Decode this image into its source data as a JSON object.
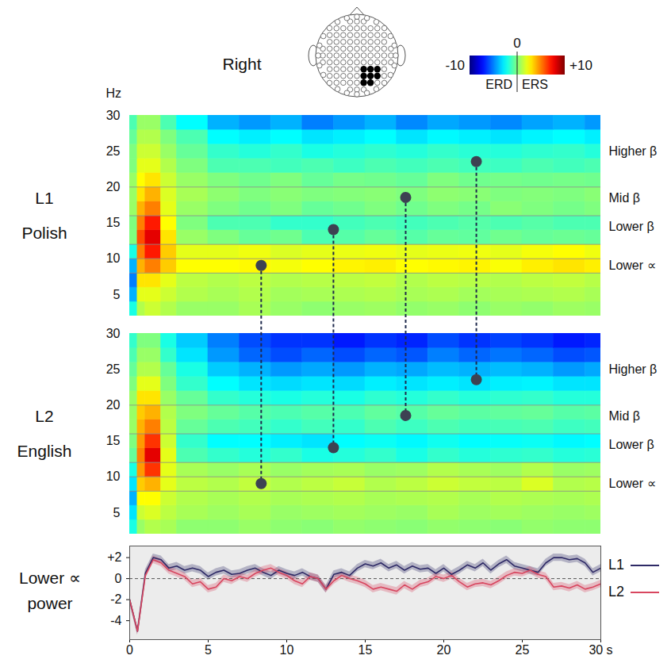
{
  "title": "Right",
  "colorbar": {
    "range": [
      -10,
      10
    ],
    "ticks": [
      -10,
      0,
      {
        "value": 10,
        "label": "+10"
      }
    ],
    "labels": [
      "ERD",
      "ERS"
    ]
  },
  "chart_data": [
    {
      "type": "heatmap",
      "title": "L1 Polish",
      "ylabel": "Hz",
      "xlim": [
        0,
        30
      ],
      "ylim": [
        2,
        30
      ],
      "yticks": [
        5,
        10,
        15,
        20,
        25,
        30
      ],
      "tick_labels": "y",
      "x_edges": [
        0,
        0.5,
        1,
        2,
        3,
        5,
        7,
        9,
        11,
        13,
        15,
        17,
        19,
        21,
        23,
        25,
        27,
        29,
        30
      ],
      "y_edges": [
        2,
        4,
        6,
        8,
        10,
        12,
        14,
        16,
        18,
        20,
        22,
        24,
        26,
        28,
        30
      ],
      "cells": [
        [
          -2,
          1,
          1.5,
          1,
          0.5,
          0.5,
          0.8,
          0.5,
          0.3,
          0.5,
          0.6,
          0.4,
          0.5,
          0.3,
          0.5,
          0.4,
          0.6,
          0.5
        ],
        [
          -4,
          2,
          2,
          1.5,
          1,
          0.8,
          1,
          0.7,
          0.8,
          0.9,
          1,
          0.8,
          0.9,
          0.7,
          0.8,
          0.9,
          1,
          0.8
        ],
        [
          -5,
          3,
          3,
          2,
          1.2,
          1,
          1.2,
          1,
          1.1,
          1.2,
          1.3,
          1,
          1.2,
          1.1,
          1,
          1.2,
          1.3,
          1.1
        ],
        [
          -4,
          4,
          5,
          3.5,
          2.5,
          2.5,
          2.6,
          2.3,
          2.5,
          2.7,
          2.8,
          2.5,
          2.6,
          2.7,
          2.4,
          2.8,
          3,
          2.8
        ],
        [
          -2,
          5,
          7,
          3.5,
          2,
          2,
          2.2,
          1.8,
          2,
          2.1,
          2.2,
          2,
          2.1,
          2.2,
          2,
          2.3,
          2.5,
          2.2
        ],
        [
          0,
          6,
          8,
          3,
          0.5,
          0,
          -0.5,
          -0.3,
          -1,
          -0.8,
          -0.5,
          -0.8,
          -0.5,
          -0.6,
          -0.3,
          -0.5,
          -0.4,
          -0.5
        ],
        [
          0,
          5,
          7,
          2.5,
          0,
          -1,
          -1,
          -1.5,
          -1.5,
          -1.2,
          -1,
          -1.2,
          -1,
          -0.8,
          -1,
          -0.8,
          -1,
          -1
        ],
        [
          0.5,
          4,
          5,
          2,
          0.5,
          0,
          -0.3,
          0,
          -0.5,
          -0.3,
          0,
          -0.3,
          0,
          -0.2,
          0.2,
          0,
          -0.2,
          0
        ],
        [
          0.5,
          3,
          4,
          1.8,
          0.8,
          0.3,
          0,
          0.2,
          0,
          0.1,
          0.2,
          0,
          0.3,
          0.2,
          0,
          0.1,
          0,
          0.2
        ],
        [
          0.5,
          2.5,
          3,
          1.5,
          0.5,
          0,
          -0.3,
          0,
          -0.5,
          -0.2,
          -0.3,
          -0.5,
          0,
          -0.3,
          -0.2,
          -0.3,
          -0.2,
          -0.3
        ],
        [
          0,
          2,
          2,
          1,
          0,
          -1,
          -1,
          -1.2,
          -1,
          -1.3,
          -1,
          -1.2,
          -1,
          -1.2,
          -1.3,
          -1,
          -1.2,
          -1
        ],
        [
          0,
          1.5,
          1.5,
          0.5,
          -0.5,
          -1.5,
          -1.8,
          -1.5,
          -2,
          -1.8,
          -1.6,
          -1.8,
          -1.5,
          -1.7,
          -1.8,
          -1.6,
          -1.5,
          -1.8
        ],
        [
          -0.5,
          1,
          1,
          0,
          -1,
          -2.5,
          -2.8,
          -2.5,
          -3,
          -2.8,
          -2.5,
          -3,
          -2.6,
          -2.8,
          -3,
          -2.7,
          -2.5,
          -2.8
        ],
        [
          -1,
          0.5,
          0.5,
          -1,
          -2.5,
          -4,
          -4.5,
          -4,
          -5,
          -4.5,
          -4,
          -4.8,
          -4.2,
          -4.5,
          -4.8,
          -4.3,
          -4,
          -4.5
        ]
      ],
      "band_lines": [
        8,
        10,
        12,
        16,
        20
      ],
      "band_labels": [
        {
          "y": 25,
          "label": "Higher β"
        },
        {
          "y": 18.5,
          "label": "Mid β"
        },
        {
          "y": 14.5,
          "label": "Lower β"
        },
        {
          "y": 9,
          "label": "Lower ∝"
        }
      ],
      "markers": [
        {
          "x": 8.4,
          "y": 9
        },
        {
          "x": 13,
          "y": 14
        },
        {
          "x": 17.6,
          "y": 18.5
        },
        {
          "x": 22.1,
          "y": 23.5
        }
      ]
    },
    {
      "type": "heatmap",
      "title": "L2 English",
      "xlim": [
        0,
        30
      ],
      "ylim": [
        2,
        30
      ],
      "yticks": [
        5,
        10,
        15,
        20,
        25,
        30
      ],
      "tick_labels": "y",
      "x_edges": [
        0,
        0.5,
        1,
        2,
        3,
        5,
        7,
        9,
        11,
        13,
        15,
        17,
        19,
        21,
        23,
        25,
        27,
        29,
        30
      ],
      "y_edges": [
        2,
        4,
        6,
        8,
        10,
        12,
        14,
        16,
        18,
        20,
        22,
        24,
        26,
        28,
        30
      ],
      "cells": [
        [
          -2,
          0.5,
          1,
          0.8,
          0.3,
          0.3,
          0.5,
          0.3,
          0.2,
          0.4,
          0.3,
          0.2,
          0.4,
          0.3,
          0.2,
          0.4,
          0.3,
          0.3
        ],
        [
          -3,
          1.5,
          1.8,
          1.2,
          0.8,
          0.6,
          0.8,
          0.5,
          0.6,
          0.7,
          0.6,
          0.5,
          0.8,
          0.6,
          0.7,
          0.6,
          0.5,
          0.6
        ],
        [
          -4,
          2.5,
          2.5,
          1.5,
          1,
          0.8,
          1,
          0.8,
          0.9,
          1,
          0.8,
          0.9,
          1,
          0.8,
          1,
          0.9,
          0.8,
          0.9
        ],
        [
          -3,
          3.5,
          4,
          2,
          1.2,
          1,
          1.3,
          1,
          1.2,
          1.4,
          1,
          1.2,
          1.5,
          1.3,
          1.2,
          1.8,
          1,
          1.1
        ],
        [
          -2,
          4.5,
          6.5,
          2,
          0.8,
          0.5,
          0.8,
          0.5,
          0.7,
          0.8,
          0.5,
          0.6,
          1,
          0.8,
          0.6,
          1,
          0.5,
          0.6
        ],
        [
          -0.5,
          5,
          8,
          2,
          -1,
          -1.5,
          -1.8,
          -1.5,
          -2,
          -1.8,
          -1.5,
          -2,
          -1.5,
          -1.8,
          -1.6,
          -1.5,
          -1.8,
          -1.7
        ],
        [
          0,
          4.5,
          6.5,
          1.5,
          -1.5,
          -2.5,
          -2.5,
          -2.8,
          -3,
          -2.5,
          -2.3,
          -2.6,
          -2.2,
          -2.5,
          -2.4,
          -2.3,
          -2.6,
          -2.5
        ],
        [
          0.5,
          4,
          5,
          1.2,
          -0.5,
          -1,
          -1.2,
          -1.5,
          -1.2,
          -1.5,
          -1,
          -1.3,
          -1,
          -1.2,
          -1.1,
          -1,
          -1.3,
          -1.2
        ],
        [
          0.5,
          3.5,
          4,
          1,
          0,
          -0.5,
          -0.8,
          -1,
          -0.8,
          -1,
          -0.6,
          -0.8,
          -0.5,
          -0.7,
          -0.6,
          -0.5,
          -0.8,
          -0.7
        ],
        [
          0.5,
          3,
          3,
          0.5,
          -0.5,
          -1.5,
          -1.8,
          -2,
          -1.8,
          -2,
          -1.6,
          -1.8,
          -1.5,
          -1.8,
          -1.6,
          -1.5,
          -1.8,
          -1.8
        ],
        [
          0,
          2,
          2,
          0,
          -1.5,
          -2.5,
          -3,
          -3.2,
          -3,
          -3.2,
          -2.8,
          -3,
          -2.8,
          -3,
          -2.8,
          -2.7,
          -3,
          -3
        ],
        [
          -0.5,
          1,
          1,
          -0.5,
          -2,
          -3.5,
          -4,
          -4.5,
          -4.2,
          -4.5,
          -4,
          -4.2,
          -3.8,
          -4,
          -3.8,
          -4,
          -4.5,
          -4.2
        ],
        [
          -1,
          0.5,
          0.5,
          -1.5,
          -3,
          -4.5,
          -5.5,
          -6,
          -5.5,
          -6,
          -5.5,
          -5.8,
          -5,
          -5.5,
          -5.2,
          -5.5,
          -6,
          -5.8
        ],
        [
          -1.5,
          0,
          0,
          -2,
          -3.5,
          -5,
          -6,
          -6.5,
          -6.5,
          -7,
          -6.5,
          -6.8,
          -6,
          -6.5,
          -6.2,
          -6.5,
          -7,
          -6.8
        ]
      ],
      "band_lines": [
        8,
        10,
        12,
        16,
        20
      ],
      "band_labels": [
        {
          "y": 25,
          "label": "Higher β"
        },
        {
          "y": 18.5,
          "label": "Mid β"
        },
        {
          "y": 14.5,
          "label": "Lower β"
        },
        {
          "y": 9,
          "label": "Lower ∝"
        }
      ],
      "markers": [
        {
          "x": 8.4,
          "y": 9
        },
        {
          "x": 13,
          "y": 14
        },
        {
          "x": 17.6,
          "y": 18.5
        },
        {
          "x": 22.1,
          "y": 23.5
        }
      ]
    },
    {
      "type": "line",
      "ylabel": "Lower ∝ power",
      "xlim": [
        0,
        30
      ],
      "ylim": [
        -5.8,
        3.1
      ],
      "xticks": [
        0,
        5,
        10,
        15,
        20,
        25,
        {
          "value": 30,
          "label": "30 s"
        }
      ],
      "yticks": [
        {
          "value": 2,
          "label": "+2"
        },
        0,
        -2,
        -4
      ],
      "hlines": [
        0
      ],
      "legend": "right",
      "x": [
        0,
        0.5,
        1,
        1.5,
        2,
        2.5,
        3,
        3.5,
        4,
        4.5,
        5,
        5.5,
        6,
        6.5,
        7,
        7.5,
        8,
        8.5,
        9,
        9.5,
        10,
        10.5,
        11,
        11.5,
        12,
        12.5,
        13,
        13.5,
        14,
        14.5,
        15,
        15.5,
        16,
        16.5,
        17,
        17.5,
        18,
        18.5,
        19,
        19.5,
        20,
        20.5,
        21,
        21.5,
        22,
        22.5,
        23,
        23.5,
        24,
        24.5,
        25,
        25.5,
        26,
        26.5,
        27,
        27.5,
        28,
        28.5,
        29,
        29.5,
        30
      ],
      "series": [
        {
          "name": "L1",
          "color": "#2e2a66",
          "error": 0.35,
          "values": [
            -2,
            -5,
            0.5,
            2,
            1.8,
            1,
            1.2,
            0.8,
            1,
            0.8,
            0.2,
            0.6,
            0.8,
            0.4,
            0.5,
            0.8,
            1,
            0.6,
            0.3,
            0.8,
            0.5,
            0.3,
            0.6,
            0.2,
            0,
            -1,
            0.4,
            0.6,
            0.3,
            1,
            1.4,
            1.2,
            1.5,
            1,
            1.3,
            0.8,
            1.2,
            0.9,
            1,
            0.5,
            1,
            0.4,
            0.8,
            1.3,
            1,
            1.5,
            0.8,
            1.4,
            1.8,
            1.2,
            1,
            0.8,
            0.6,
            1.5,
            2,
            2,
            1.8,
            1.9,
            1.5,
            0.6,
            1
          ]
        },
        {
          "name": "L2",
          "color": "#d8465f",
          "error": 0.35,
          "values": [
            -2,
            -5,
            0.3,
            1.8,
            1.5,
            0.8,
            0.5,
            0.2,
            -0.5,
            -0.3,
            -1,
            -0.8,
            0,
            -0.2,
            0.2,
            0,
            0.5,
            0.8,
            1,
            0.6,
            0.3,
            -0.2,
            -0.5,
            0.2,
            0,
            -1,
            -0.2,
            0.3,
            0,
            -0.2,
            -0.5,
            -1,
            -0.8,
            -1,
            -1.2,
            -0.6,
            -1,
            -0.5,
            -0.3,
            0.2,
            0,
            0.3,
            -0.3,
            -0.8,
            -0.5,
            -0.4,
            -0.6,
            -0.2,
            0.3,
            0.6,
            0.5,
            0.8,
            0.4,
            0.2,
            -0.8,
            -0.7,
            -0.9,
            -0.6,
            -1,
            -0.8,
            -0.5
          ]
        }
      ]
    }
  ]
}
